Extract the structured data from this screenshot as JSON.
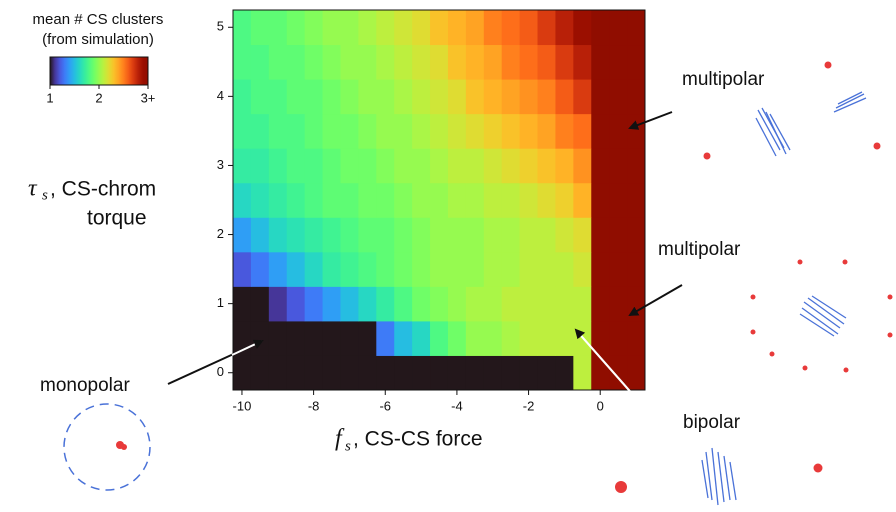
{
  "chart_data": {
    "type": "heatmap",
    "colorbar_title": [
      "mean # CS clusters",
      "(from simulation)"
    ],
    "clim": [
      1,
      3
    ],
    "cticks": [
      1,
      2,
      {
        "value": 3,
        "label": "3+"
      }
    ],
    "colormap": "turbo",
    "xlabel_symbol": "f",
    "xlabel_subscript": "s",
    "xlabel": ", CS-CS force",
    "ylabel_symbol": "τ",
    "ylabel_subscript": "s",
    "ylabel": [
      ", CS-chrom",
      "torque"
    ],
    "xlim": [
      -10.25,
      1.25
    ],
    "ylim": [
      -0.25,
      5.25
    ],
    "xticks": [
      -10,
      -8,
      -6,
      -4,
      -2,
      0
    ],
    "yticks": [
      0,
      1,
      2,
      3,
      4,
      5
    ],
    "x": [
      -10,
      -9.5,
      -9,
      -8.5,
      -8,
      -7.5,
      -7,
      -6.5,
      -6,
      -5.5,
      -5,
      -4.5,
      -4,
      -3.5,
      -3,
      -2.5,
      -2,
      -1.5,
      -1,
      -0.5,
      0,
      0.5,
      1
    ],
    "y": [
      0,
      0.5,
      1,
      1.5,
      2,
      2.5,
      3,
      3.5,
      4,
      4.5,
      5
    ],
    "z": [
      [
        1,
        1,
        1,
        1,
        1,
        1,
        1,
        1,
        1,
        1,
        1,
        1,
        1,
        1,
        1,
        1,
        1,
        1,
        1,
        2.1,
        3,
        3,
        3
      ],
      [
        1,
        1,
        1,
        1,
        1,
        1,
        1,
        1,
        1.3,
        1.5,
        1.6,
        1.8,
        1.9,
        2.0,
        2.0,
        2.05,
        2.1,
        2.1,
        2.1,
        2.1,
        3,
        3,
        3
      ],
      [
        1,
        1,
        1.1,
        1.2,
        1.3,
        1.4,
        1.5,
        1.6,
        1.7,
        1.8,
        1.9,
        1.95,
        2.0,
        2.05,
        2.05,
        2.1,
        2.1,
        2.1,
        2.1,
        2.1,
        3,
        3,
        3
      ],
      [
        1.2,
        1.3,
        1.4,
        1.5,
        1.6,
        1.7,
        1.75,
        1.8,
        1.85,
        1.9,
        1.95,
        2.0,
        2.0,
        2.0,
        2.05,
        2.05,
        2.1,
        2.1,
        2.1,
        2.15,
        3,
        3,
        3
      ],
      [
        1.4,
        1.5,
        1.6,
        1.65,
        1.7,
        1.75,
        1.8,
        1.85,
        1.85,
        1.9,
        1.95,
        2.0,
        2.0,
        2.0,
        2.05,
        2.05,
        2.1,
        2.1,
        2.15,
        2.2,
        3,
        3,
        3
      ],
      [
        1.6,
        1.65,
        1.7,
        1.75,
        1.8,
        1.85,
        1.85,
        1.9,
        1.9,
        1.95,
        2.0,
        2.0,
        2.05,
        2.05,
        2.1,
        2.1,
        2.15,
        2.2,
        2.25,
        2.35,
        3,
        3,
        3
      ],
      [
        1.7,
        1.7,
        1.75,
        1.8,
        1.8,
        1.85,
        1.9,
        1.9,
        1.95,
        2.0,
        2.0,
        2.05,
        2.1,
        2.1,
        2.15,
        2.2,
        2.25,
        2.3,
        2.35,
        2.45,
        3,
        3,
        3
      ],
      [
        1.75,
        1.75,
        1.8,
        1.8,
        1.85,
        1.9,
        1.9,
        1.95,
        2.0,
        2.0,
        2.05,
        2.1,
        2.15,
        2.2,
        2.25,
        2.3,
        2.35,
        2.4,
        2.5,
        2.55,
        3,
        3,
        3
      ],
      [
        1.75,
        1.8,
        1.8,
        1.85,
        1.85,
        1.9,
        1.95,
        2.0,
        2.0,
        2.05,
        2.1,
        2.15,
        2.2,
        2.3,
        2.35,
        2.4,
        2.45,
        2.5,
        2.6,
        2.7,
        3,
        3,
        3
      ],
      [
        1.8,
        1.8,
        1.85,
        1.85,
        1.9,
        1.95,
        2.0,
        2.0,
        2.05,
        2.1,
        2.15,
        2.2,
        2.3,
        2.35,
        2.4,
        2.5,
        2.55,
        2.6,
        2.7,
        2.8,
        3,
        3,
        3
      ],
      [
        1.8,
        1.85,
        1.85,
        1.9,
        1.95,
        2.0,
        2.0,
        2.05,
        2.1,
        2.15,
        2.2,
        2.3,
        2.35,
        2.4,
        2.5,
        2.55,
        2.6,
        2.7,
        2.8,
        2.9,
        3,
        3,
        3
      ]
    ],
    "annotations": [
      "multipolar",
      "multipolar",
      "bipolar",
      "monopolar"
    ]
  }
}
